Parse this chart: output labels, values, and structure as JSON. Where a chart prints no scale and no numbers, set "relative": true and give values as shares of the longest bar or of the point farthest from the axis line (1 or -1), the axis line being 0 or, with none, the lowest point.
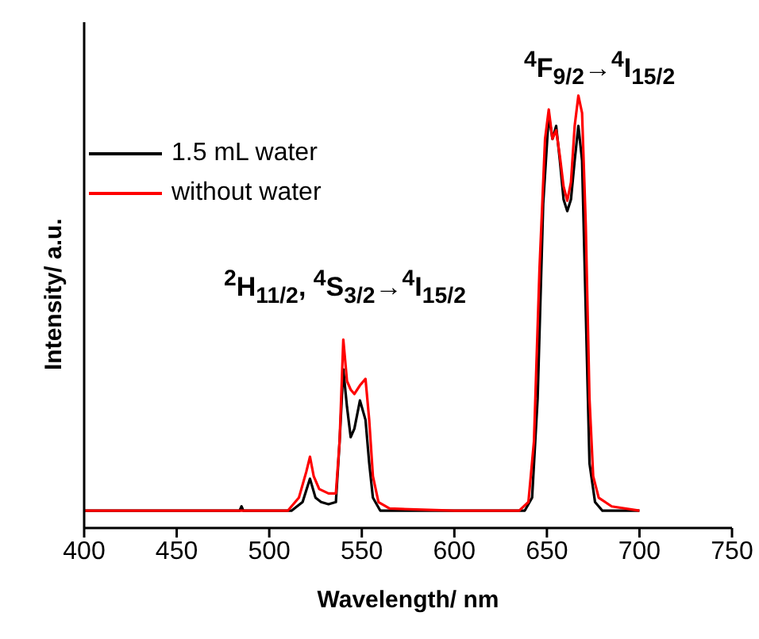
{
  "chart_data": {
    "type": "line",
    "relative": true,
    "xlabel": "Wavelength/ nm",
    "ylabel": "Intensity/ a.u.",
    "xlim": [
      400,
      750
    ],
    "xticks": [
      400,
      450,
      500,
      550,
      600,
      650,
      700,
      750
    ],
    "legend": "top left",
    "grid": false,
    "marker": "none",
    "line_style": "solid",
    "annotations": [
      "$^{2}$H$_{11/2}$, $^{4}$S$_{3/2}$→$^{4}$I$_{15/2}$",
      "$^{4}$F$_{9/2}$→$^{4}$I$_{15/2}$"
    ],
    "series": [
      {
        "name": "1.5 mL water",
        "color": "#000000",
        "x": [
          400,
          484,
          485,
          486,
          512,
          518,
          522,
          525,
          528,
          532,
          536,
          538,
          540,
          542,
          544,
          546,
          549,
          552,
          554,
          556,
          560,
          600,
          638,
          642,
          645,
          648,
          651,
          653,
          655,
          657,
          659,
          661,
          663,
          665,
          667,
          669,
          671,
          673,
          676,
          680,
          700
        ],
        "values": [
          0.04,
          0.04,
          0.05,
          0.04,
          0.04,
          0.06,
          0.114,
          0.07,
          0.06,
          0.055,
          0.06,
          0.2,
          0.367,
          0.28,
          0.21,
          0.23,
          0.295,
          0.25,
          0.15,
          0.07,
          0.04,
          0.04,
          0.04,
          0.07,
          0.3,
          0.75,
          0.955,
          0.9,
          0.93,
          0.85,
          0.76,
          0.733,
          0.76,
          0.85,
          0.93,
          0.85,
          0.5,
          0.15,
          0.06,
          0.04,
          0.04
        ]
      },
      {
        "name": "without water",
        "color": "#ff0000",
        "x": [
          400,
          480,
          510,
          516,
          520,
          522,
          524,
          527,
          532,
          536,
          538,
          540,
          542,
          544,
          546,
          549,
          552,
          554,
          556,
          559,
          565,
          600,
          635,
          640,
          643,
          646,
          649,
          651,
          653,
          655,
          657,
          659,
          661,
          663,
          665,
          667,
          669,
          671,
          673,
          675,
          678,
          685,
          700
        ],
        "values": [
          0.04,
          0.04,
          0.04,
          0.07,
          0.13,
          0.165,
          0.12,
          0.09,
          0.08,
          0.08,
          0.2,
          0.436,
          0.34,
          0.32,
          0.31,
          0.33,
          0.345,
          0.25,
          0.12,
          0.06,
          0.045,
          0.04,
          0.04,
          0.06,
          0.2,
          0.6,
          0.9,
          0.968,
          0.9,
          0.92,
          0.86,
          0.79,
          0.757,
          0.8,
          0.93,
          1.0,
          0.96,
          0.7,
          0.3,
          0.12,
          0.07,
          0.05,
          0.04
        ]
      }
    ]
  }
}
